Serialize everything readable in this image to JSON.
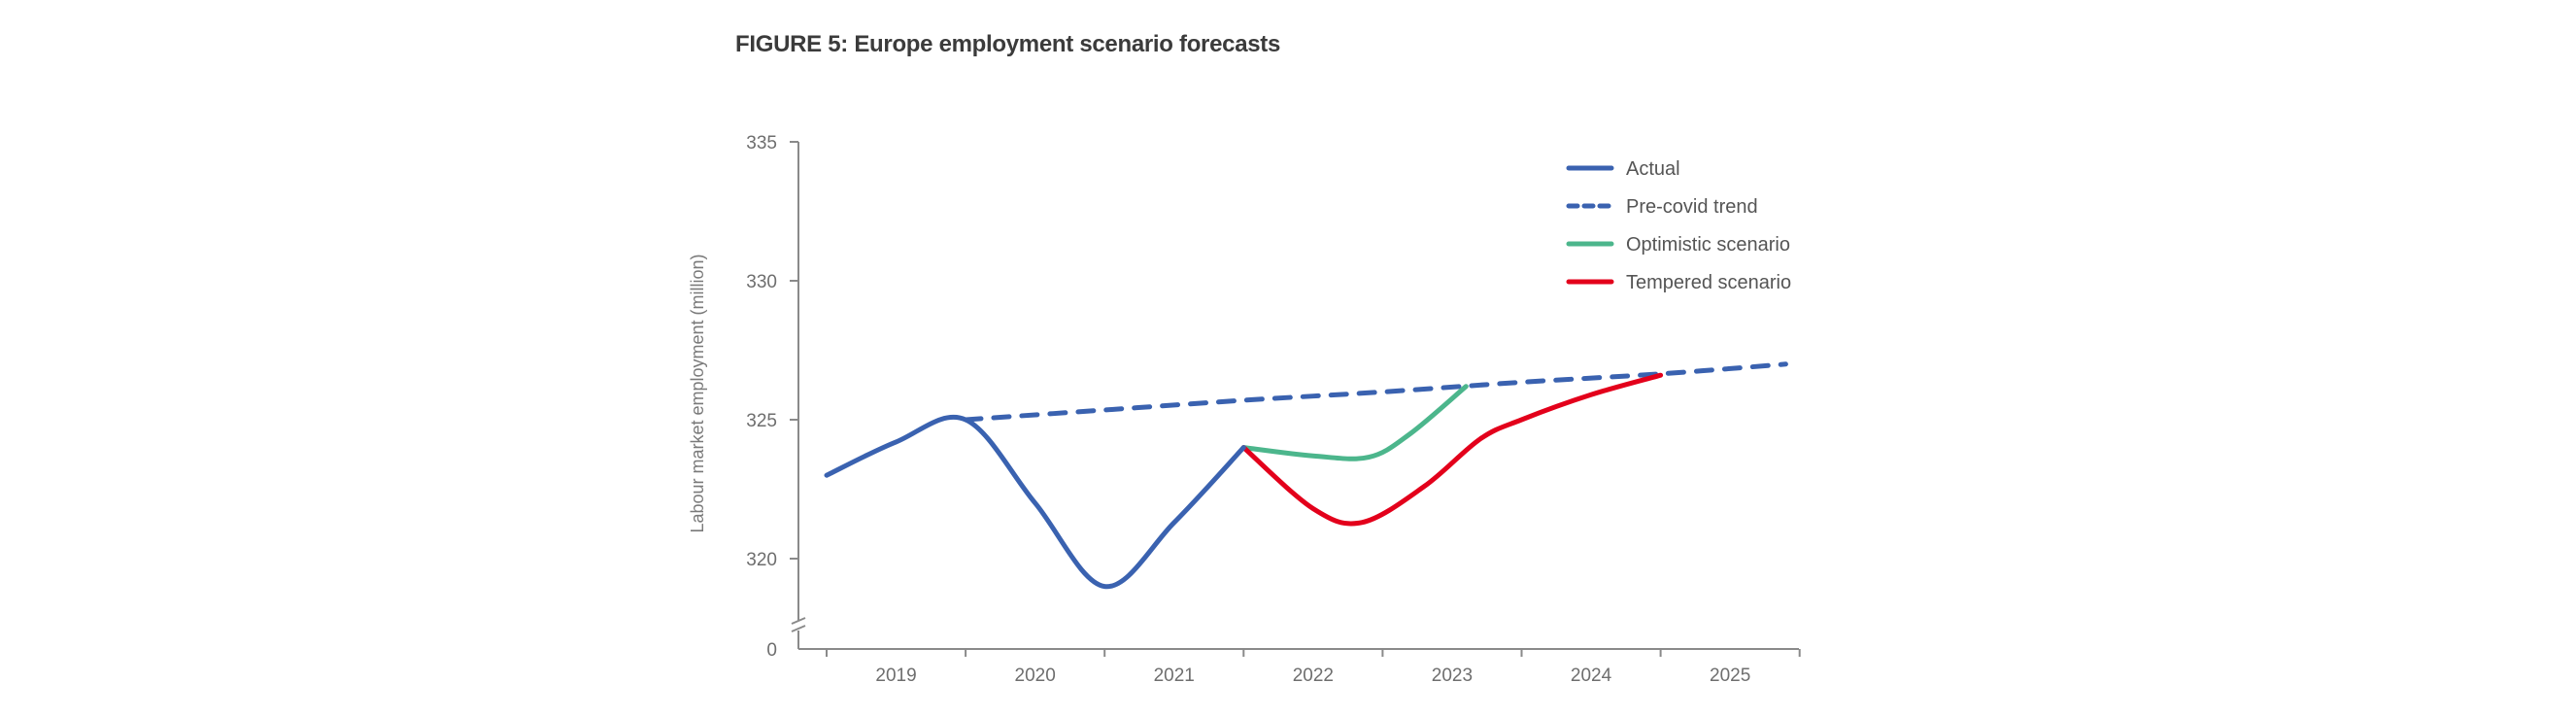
{
  "title": "FIGURE 5: Europe employment scenario forecasts",
  "chart_data": {
    "type": "line",
    "title": "FIGURE 5: Europe employment scenario forecasts",
    "xlabel": "",
    "ylabel": "Labour market employment (million)",
    "x_tick_labels": [
      "2019",
      "2020",
      "2021",
      "2022",
      "2023",
      "2024",
      "2025"
    ],
    "x_range": [
      2019.0,
      2026.0
    ],
    "y_ticks": [
      320,
      325,
      330,
      335
    ],
    "y_tick_labels": [
      "320",
      "325",
      "330",
      "335"
    ],
    "y_axis_break": true,
    "y_axis_zero_label": "0",
    "ylim": [
      318,
      335
    ],
    "grid": false,
    "legend_position": "top-right",
    "series": [
      {
        "name": "Actual",
        "color": "#3a62b0",
        "style": "solid",
        "points": [
          [
            2019.0,
            323.0
          ],
          [
            2019.5,
            324.2
          ],
          [
            2020.0,
            325.0
          ],
          [
            2020.5,
            322.0
          ],
          [
            2021.0,
            319.0
          ],
          [
            2021.5,
            321.3
          ],
          [
            2022.0,
            324.0
          ]
        ]
      },
      {
        "name": "Pre-covid trend",
        "color": "#3a62b0",
        "style": "dashed",
        "points": [
          [
            2020.0,
            325.0
          ],
          [
            2021.0,
            325.35
          ],
          [
            2022.0,
            325.7
          ],
          [
            2023.0,
            326.0
          ],
          [
            2024.0,
            326.35
          ],
          [
            2025.0,
            326.65
          ],
          [
            2025.9,
            327.0
          ]
        ]
      },
      {
        "name": "Optimistic scenario",
        "color": "#4cb68c",
        "style": "solid",
        "points": [
          [
            2022.0,
            324.0
          ],
          [
            2022.5,
            323.7
          ],
          [
            2022.9,
            323.65
          ],
          [
            2023.2,
            324.5
          ],
          [
            2023.6,
            326.2
          ]
        ]
      },
      {
        "name": "Tempered scenario",
        "color": "#e3001b",
        "style": "solid",
        "points": [
          [
            2022.0,
            324.0
          ],
          [
            2022.5,
            321.8
          ],
          [
            2022.85,
            321.3
          ],
          [
            2023.3,
            322.6
          ],
          [
            2023.7,
            324.3
          ],
          [
            2024.0,
            325.0
          ],
          [
            2024.5,
            325.9
          ],
          [
            2025.0,
            326.6
          ]
        ]
      }
    ]
  }
}
